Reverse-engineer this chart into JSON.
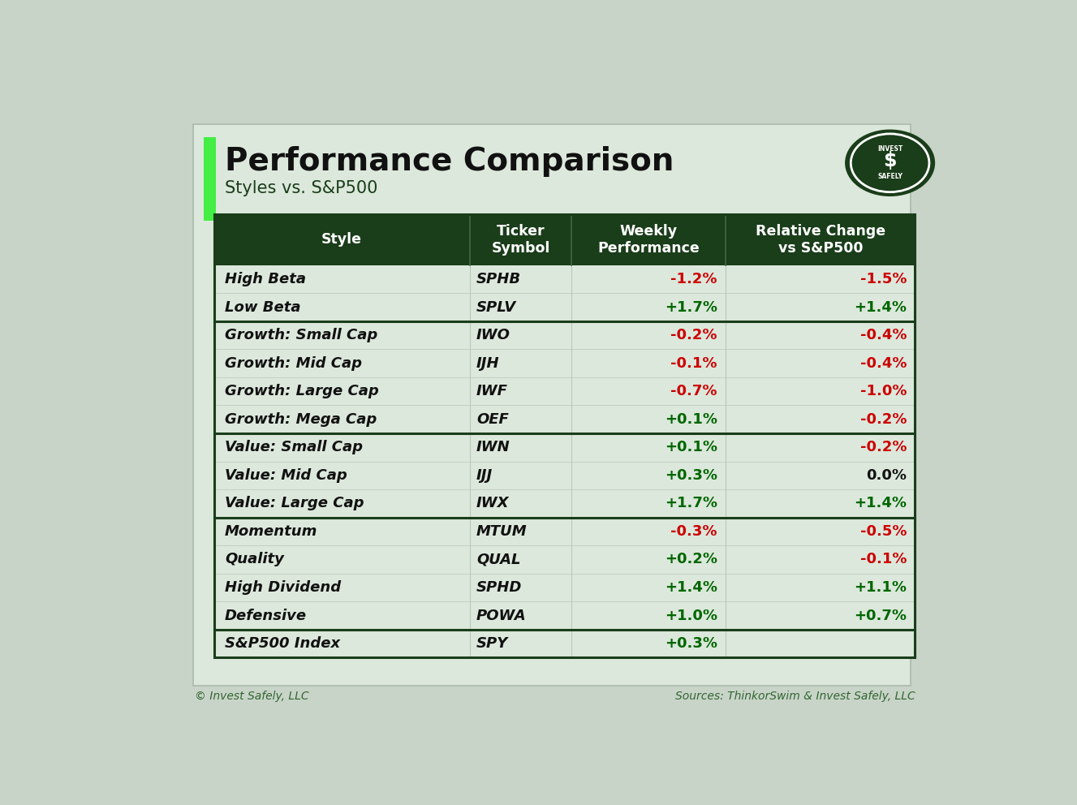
{
  "title": "Performance Comparison",
  "subtitle": "Styles vs. S&P500",
  "page_bg": "#c8d4c8",
  "inner_bg": "#dce8dc",
  "header_bg": "#1a3d1a",
  "header_text_color": "#ffffff",
  "footer_left": "© Invest Safely, LLC",
  "footer_right": "Sources: ThinkorSwim & Invest Safely, LLC",
  "col_headers": [
    "Style",
    "Ticker\nSymbol",
    "Weekly\nPerformance",
    "Relative Change\nvs S&P500"
  ],
  "rows": [
    {
      "style": "High Beta",
      "ticker": "SPHB",
      "weekly": "-1.2%",
      "relative": "-1.5%",
      "weekly_color": "red",
      "relative_color": "red",
      "group_sep_above": false
    },
    {
      "style": "Low Beta",
      "ticker": "SPLV",
      "weekly": "+1.7%",
      "relative": "+1.4%",
      "weekly_color": "green",
      "relative_color": "green",
      "group_sep_above": false
    },
    {
      "style": "Growth: Small Cap",
      "ticker": "IWO",
      "weekly": "-0.2%",
      "relative": "-0.4%",
      "weekly_color": "red",
      "relative_color": "red",
      "group_sep_above": true
    },
    {
      "style": "Growth: Mid Cap",
      "ticker": "IJH",
      "weekly": "-0.1%",
      "relative": "-0.4%",
      "weekly_color": "red",
      "relative_color": "red",
      "group_sep_above": false
    },
    {
      "style": "Growth: Large Cap",
      "ticker": "IWF",
      "weekly": "-0.7%",
      "relative": "-1.0%",
      "weekly_color": "red",
      "relative_color": "red",
      "group_sep_above": false
    },
    {
      "style": "Growth: Mega Cap",
      "ticker": "OEF",
      "weekly": "+0.1%",
      "relative": "-0.2%",
      "weekly_color": "green",
      "relative_color": "red",
      "group_sep_above": false
    },
    {
      "style": "Value: Small Cap",
      "ticker": "IWN",
      "weekly": "+0.1%",
      "relative": "-0.2%",
      "weekly_color": "green",
      "relative_color": "red",
      "group_sep_above": true
    },
    {
      "style": "Value: Mid Cap",
      "ticker": "IJJ",
      "weekly": "+0.3%",
      "relative": "0.0%",
      "weekly_color": "green",
      "relative_color": "black",
      "group_sep_above": false
    },
    {
      "style": "Value: Large Cap",
      "ticker": "IWX",
      "weekly": "+1.7%",
      "relative": "+1.4%",
      "weekly_color": "green",
      "relative_color": "green",
      "group_sep_above": false
    },
    {
      "style": "Momentum",
      "ticker": "MTUM",
      "weekly": "-0.3%",
      "relative": "-0.5%",
      "weekly_color": "red",
      "relative_color": "red",
      "group_sep_above": true
    },
    {
      "style": "Quality",
      "ticker": "QUAL",
      "weekly": "+0.2%",
      "relative": "-0.1%",
      "weekly_color": "green",
      "relative_color": "red",
      "group_sep_above": false
    },
    {
      "style": "High Dividend",
      "ticker": "SPHD",
      "weekly": "+1.4%",
      "relative": "+1.1%",
      "weekly_color": "green",
      "relative_color": "green",
      "group_sep_above": false
    },
    {
      "style": "Defensive",
      "ticker": "POWA",
      "weekly": "+1.0%",
      "relative": "+0.7%",
      "weekly_color": "green",
      "relative_color": "green",
      "group_sep_above": false
    },
    {
      "style": "S&P500 Index",
      "ticker": "SPY",
      "weekly": "+0.3%",
      "relative": "",
      "weekly_color": "green",
      "relative_color": "black",
      "group_sep_above": true
    }
  ],
  "accent_green": "#44ee44",
  "green_color": "#006600",
  "red_color": "#cc0000",
  "sep_color": "#1a3d1a",
  "col_div_color": "#b8c8b8"
}
